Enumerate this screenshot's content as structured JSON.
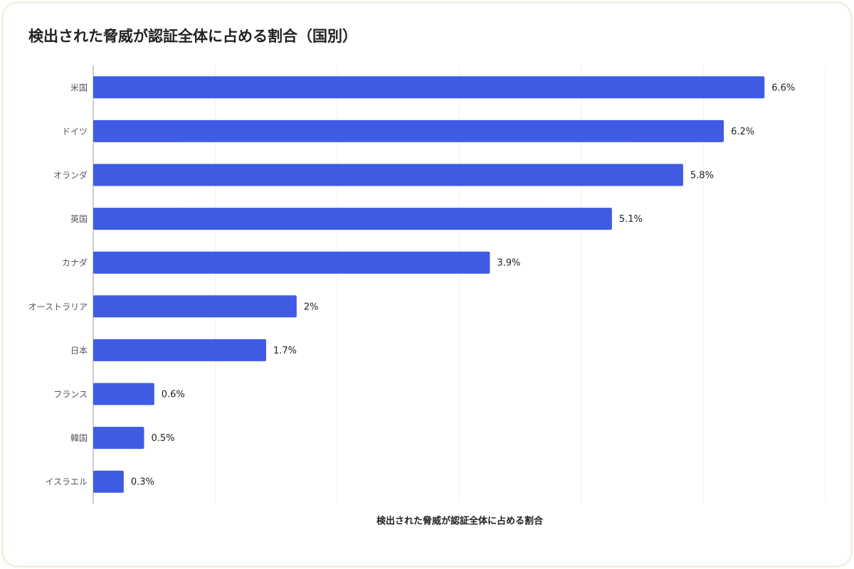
{
  "chart_data": {
    "type": "hbar",
    "title": "検出された脅威が認証全体に占める割合（国別）",
    "x_label": "検出された脅威が認証全体に占める割合",
    "categories": [
      "米国",
      "ドイツ",
      "オランダ",
      "英国",
      "カナダ",
      "オーストラリア",
      "日本",
      "フランス",
      "韓国",
      "イスラエル"
    ],
    "values": [
      6.6,
      6.2,
      5.8,
      5.1,
      3.9,
      2,
      1.7,
      0.6,
      0.5,
      0.3
    ],
    "value_labels": [
      "6.6%",
      "6.2%",
      "5.8%",
      "5.1%",
      "3.9%",
      "2%",
      "1.7%",
      "0.6%",
      "0.5%",
      "0.3%"
    ],
    "color": "#3f5be3",
    "xlim": [
      0,
      7.2
    ],
    "xticks": [
      0,
      1.2,
      2.4,
      3.6,
      4.8,
      6,
      7.2
    ],
    "grid": true
  }
}
